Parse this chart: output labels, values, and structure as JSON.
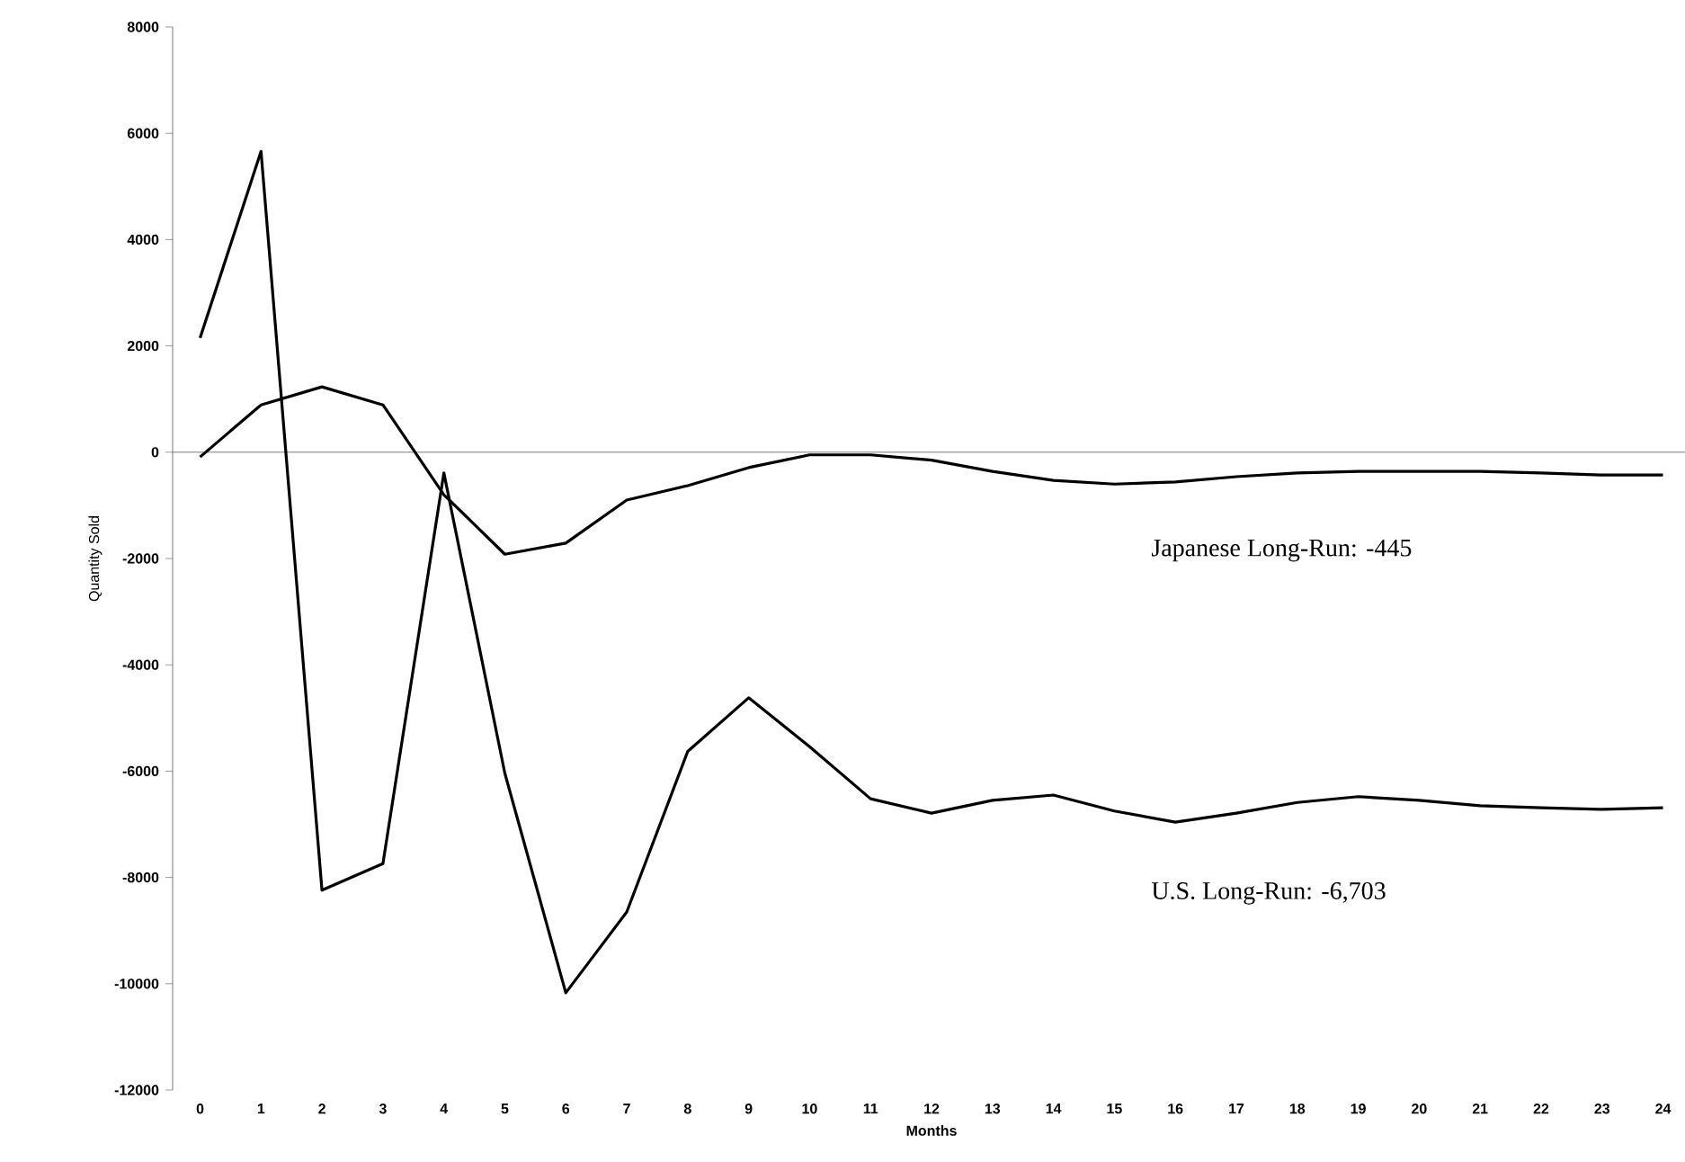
{
  "chart_data": {
    "type": "line",
    "xlabel": "Months",
    "ylabel": "Quantity Sold",
    "categories": [
      "0",
      "1",
      "2",
      "3",
      "4",
      "5",
      "6",
      "7",
      "8",
      "9",
      "10",
      "11",
      "12",
      "13",
      "14",
      "15",
      "16",
      "17",
      "18",
      "19",
      "20",
      "21",
      "22",
      "23",
      "24"
    ],
    "series": [
      {
        "color": "#000000",
        "values": [
          2150,
          5660,
          -8240,
          -7740,
          -390,
          -6040,
          -10170,
          -8650,
          -5630,
          -4620,
          -5540,
          -6520,
          -6790,
          -6550,
          -6450,
          -6750,
          -6960,
          -6790,
          -6590,
          -6480,
          -6550,
          -6650,
          -6690,
          -6720,
          -6690
        ]
      },
      {
        "color": "#000000",
        "values": [
          -90,
          890,
          1230,
          890,
          -800,
          -1920,
          -1710,
          -900,
          -630,
          -290,
          -50,
          -50,
          -150,
          -360,
          -530,
          -600,
          -560,
          -460,
          -390,
          -360,
          -360,
          -360,
          -390,
          -430,
          -430
        ]
      }
    ],
    "ylim": [
      -12000,
      8000
    ],
    "yticks": [
      -12000,
      -10000,
      -8000,
      -6000,
      -4000,
      -2000,
      0,
      2000,
      4000,
      6000,
      8000
    ],
    "marker": "none",
    "line_style": "solid",
    "annotations": [
      "Japanese Long-Run: -445",
      "U.S. Long-Run: -6,703"
    ]
  }
}
